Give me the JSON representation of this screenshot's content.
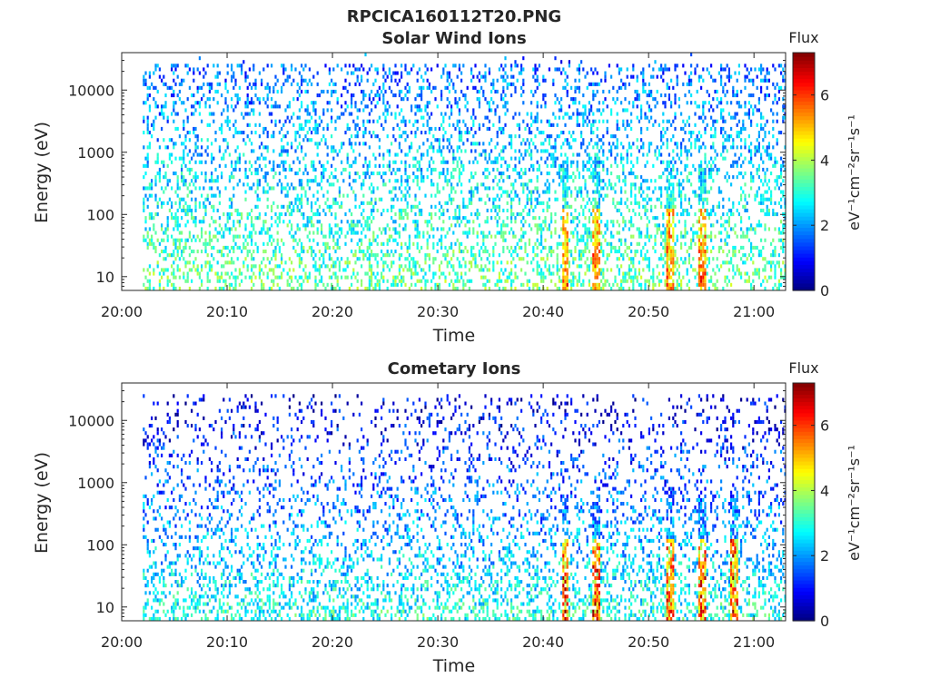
{
  "figure": {
    "title": "RPCICA160112T20.PNG"
  },
  "chart_data": [
    {
      "type": "heatmap",
      "title": "Solar Wind Ions",
      "xlabel": "Time",
      "ylabel": "Energy (eV)",
      "x_ticks": [
        "20:00",
        "20:10",
        "20:20",
        "20:30",
        "20:40",
        "20:50",
        "21:00"
      ],
      "x_range": [
        "20:00",
        "21:03"
      ],
      "y_scale": "log",
      "y_ticks": [
        "10",
        "100",
        "1000",
        "10000"
      ],
      "y_range": [
        6,
        40000
      ],
      "colorbar": {
        "title": "Flux",
        "label": "eV⁻¹cm⁻²sr⁻¹s⁻¹",
        "ticks": [
          "0",
          "2",
          "4",
          "6"
        ],
        "range": [
          0,
          7.3
        ],
        "colormap": "jet"
      },
      "description_values": {
        "data_start": "20:02",
        "data_end": "21:03",
        "typical_flux_high_energy": 1.5,
        "typical_flux_low_energy": 3.5,
        "enhanced_time_bands": [
          "20:42",
          "20:45",
          "20:52",
          "20:55"
        ]
      }
    },
    {
      "type": "heatmap",
      "title": "Cometary Ions",
      "xlabel": "Time",
      "ylabel": "Energy (eV)",
      "x_ticks": [
        "20:00",
        "20:10",
        "20:20",
        "20:30",
        "20:40",
        "20:50",
        "21:00"
      ],
      "x_range": [
        "20:00",
        "21:03"
      ],
      "y_scale": "log",
      "y_ticks": [
        "10",
        "100",
        "1000",
        "10000"
      ],
      "y_range": [
        6,
        40000
      ],
      "colorbar": {
        "title": "Flux",
        "label": "eV⁻¹cm⁻²sr⁻¹s⁻¹",
        "ticks": [
          "0",
          "2",
          "4",
          "6"
        ],
        "range": [
          0,
          7.3
        ],
        "colormap": "jet"
      },
      "description_values": {
        "data_start": "20:02",
        "data_end": "21:03",
        "typical_flux_high_energy": 0.5,
        "typical_flux_low_energy": 3.0,
        "enhanced_time_bands": [
          "20:42",
          "20:45",
          "20:52",
          "20:55",
          "20:58"
        ]
      }
    }
  ]
}
